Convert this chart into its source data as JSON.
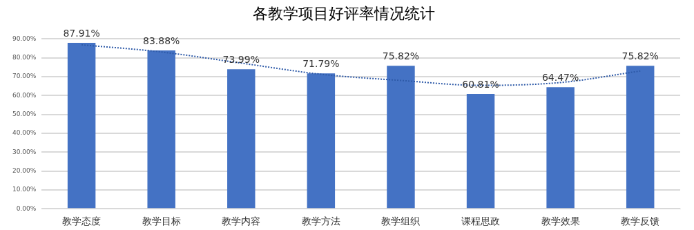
{
  "chart_data": {
    "type": "bar",
    "title": "各教学项目好评率情况统计",
    "categories": [
      "教学态度",
      "教学目标",
      "教学内容",
      "教学方法",
      "教学组织",
      "课程思政",
      "教学效果",
      "教学反馈"
    ],
    "series": [
      {
        "color": "#4472c4",
        "values": [
          87.91,
          83.88,
          73.99,
          71.79,
          75.82,
          60.81,
          64.47,
          75.82
        ],
        "value_labels": [
          "87.91%",
          "83.88%",
          "73.99%",
          "71.79%",
          "75.82%",
          "60.81%",
          "64.47%",
          "75.82%"
        ]
      },
      {
        "type": "line",
        "color": "#2e5aa8",
        "line_style": "dotted",
        "marker": "none",
        "x": [
          "教学态度",
          "教学目标",
          "教学内容",
          "教学方法",
          "教学组织",
          "课程思政",
          "教学效果",
          "教学反馈"
        ],
        "values": [
          86.9,
          83.1,
          77.2,
          71.3,
          68.0,
          65.4,
          66.9,
          73.0
        ]
      }
    ],
    "ylim": [
      0,
      90
    ],
    "yticks": [
      {
        "value": 0,
        "label": "0.00%"
      },
      {
        "value": 10,
        "label": "10.00%"
      },
      {
        "value": 20,
        "label": "20.00%"
      },
      {
        "value": 30,
        "label": "30.00%"
      },
      {
        "value": 40,
        "label": "40.00%"
      },
      {
        "value": 50,
        "label": "50.00%"
      },
      {
        "value": 60,
        "label": "60.00%"
      },
      {
        "value": 70,
        "label": "70.00%"
      },
      {
        "value": 80,
        "label": "80.00%"
      },
      {
        "value": 90,
        "label": "90.00%"
      }
    ],
    "grid": "y",
    "legend": false
  }
}
